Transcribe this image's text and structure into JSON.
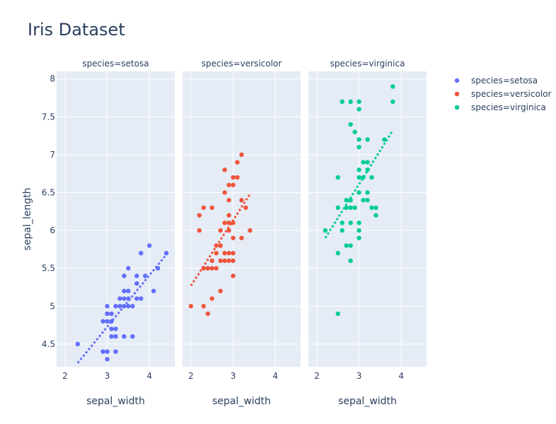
{
  "title": "Iris Dataset",
  "colors": {
    "plot_bg": "#e5ecf6",
    "grid": "#ffffff",
    "text": "#2a3f5f"
  },
  "chart_data": {
    "type": "scatter",
    "title": "Iris Dataset",
    "xlabel": "sepal_width",
    "ylabel": "sepal_length",
    "xlim": [
      1.8,
      4.6
    ],
    "ylim": [
      4.2,
      8.1
    ],
    "xticks": [
      "2",
      "3",
      "4"
    ],
    "yticks": [
      "4.5",
      "5",
      "5.5",
      "6",
      "6.5",
      "7",
      "7.5",
      "8"
    ],
    "grid": true,
    "legend_position": "top-right",
    "trendline_style": "dotted",
    "facets": [
      {
        "label": "species=setosa",
        "series": "species=setosa",
        "color": "#636efa",
        "trend": [
          [
            2.3,
            4.25
          ],
          [
            4.4,
            5.68
          ]
        ],
        "points": [
          [
            2.3,
            4.5
          ],
          [
            2.9,
            4.4
          ],
          [
            3.0,
            4.4
          ],
          [
            3.2,
            4.4
          ],
          [
            3.0,
            4.3
          ],
          [
            2.9,
            4.8
          ],
          [
            3.0,
            4.8
          ],
          [
            3.1,
            4.8
          ],
          [
            3.0,
            4.9
          ],
          [
            3.1,
            4.9
          ],
          [
            3.0,
            5.0
          ],
          [
            3.2,
            5.0
          ],
          [
            3.3,
            5.0
          ],
          [
            3.4,
            5.0
          ],
          [
            3.5,
            5.0
          ],
          [
            3.6,
            5.0
          ],
          [
            3.1,
            4.7
          ],
          [
            3.2,
            4.7
          ],
          [
            3.1,
            4.6
          ],
          [
            3.2,
            4.6
          ],
          [
            3.4,
            4.6
          ],
          [
            3.6,
            4.6
          ],
          [
            3.3,
            5.1
          ],
          [
            3.4,
            5.1
          ],
          [
            3.5,
            5.1
          ],
          [
            3.7,
            5.1
          ],
          [
            3.8,
            5.1
          ],
          [
            3.4,
            5.2
          ],
          [
            3.5,
            5.2
          ],
          [
            4.1,
            5.2
          ],
          [
            3.7,
            5.3
          ],
          [
            3.4,
            5.4
          ],
          [
            3.7,
            5.4
          ],
          [
            3.9,
            5.4
          ],
          [
            3.5,
            5.5
          ],
          [
            4.2,
            5.5
          ],
          [
            3.8,
            5.7
          ],
          [
            4.4,
            5.7
          ],
          [
            4.0,
            5.8
          ],
          [
            3.0,
            4.9
          ]
        ]
      },
      {
        "label": "species=versicolor",
        "series": "species=versicolor",
        "color": "#ef553b",
        "trend": [
          [
            2.0,
            5.27
          ],
          [
            3.4,
            6.48
          ]
        ],
        "points": [
          [
            2.0,
            5.0
          ],
          [
            2.3,
            5.0
          ],
          [
            2.4,
            4.9
          ],
          [
            2.5,
            5.1
          ],
          [
            2.7,
            5.2
          ],
          [
            2.3,
            5.5
          ],
          [
            2.4,
            5.5
          ],
          [
            2.5,
            5.5
          ],
          [
            2.6,
            5.5
          ],
          [
            2.5,
            5.6
          ],
          [
            2.7,
            5.6
          ],
          [
            2.9,
            5.6
          ],
          [
            3.0,
            5.6
          ],
          [
            2.6,
            5.7
          ],
          [
            2.8,
            5.7
          ],
          [
            2.9,
            5.7
          ],
          [
            3.0,
            5.7
          ],
          [
            2.6,
            5.8
          ],
          [
            2.7,
            5.8
          ],
          [
            2.7,
            5.8
          ],
          [
            3.0,
            5.9
          ],
          [
            3.2,
            5.9
          ],
          [
            2.2,
            6.0
          ],
          [
            2.7,
            6.0
          ],
          [
            2.9,
            6.0
          ],
          [
            3.4,
            6.0
          ],
          [
            2.2,
            6.2
          ],
          [
            2.9,
            6.2
          ],
          [
            2.3,
            6.3
          ],
          [
            2.5,
            6.3
          ],
          [
            3.3,
            6.3
          ],
          [
            2.9,
            6.4
          ],
          [
            3.2,
            6.4
          ],
          [
            2.8,
            6.5
          ],
          [
            3.0,
            6.6
          ],
          [
            2.9,
            6.6
          ],
          [
            3.0,
            6.7
          ],
          [
            3.1,
            6.7
          ],
          [
            2.8,
            6.8
          ],
          [
            3.1,
            6.9
          ],
          [
            3.2,
            7.0
          ],
          [
            2.8,
            6.1
          ],
          [
            2.9,
            6.1
          ],
          [
            3.0,
            6.1
          ],
          [
            3.0,
            5.4
          ],
          [
            2.4,
            5.5
          ],
          [
            2.8,
            5.6
          ]
        ]
      },
      {
        "label": "species=virginica",
        "series": "species=virginica",
        "color": "#00cc96",
        "trend": [
          [
            2.2,
            5.9
          ],
          [
            3.8,
            7.32
          ]
        ],
        "points": [
          [
            2.5,
            4.9
          ],
          [
            2.5,
            5.7
          ],
          [
            2.7,
            5.8
          ],
          [
            2.8,
            5.8
          ],
          [
            2.8,
            5.6
          ],
          [
            3.0,
            5.9
          ],
          [
            3.0,
            6.0
          ],
          [
            2.2,
            6.0
          ],
          [
            3.0,
            6.1
          ],
          [
            2.6,
            6.1
          ],
          [
            2.8,
            6.1
          ],
          [
            2.6,
            6.0
          ],
          [
            2.5,
            6.3
          ],
          [
            2.7,
            6.3
          ],
          [
            2.8,
            6.3
          ],
          [
            2.9,
            6.3
          ],
          [
            3.3,
            6.3
          ],
          [
            3.4,
            6.3
          ],
          [
            3.4,
            6.2
          ],
          [
            2.7,
            6.4
          ],
          [
            2.8,
            6.4
          ],
          [
            3.1,
            6.4
          ],
          [
            3.2,
            6.4
          ],
          [
            3.0,
            6.5
          ],
          [
            3.2,
            6.5
          ],
          [
            3.0,
            6.7
          ],
          [
            3.1,
            6.7
          ],
          [
            3.3,
            6.7
          ],
          [
            2.5,
            6.7
          ],
          [
            3.0,
            6.8
          ],
          [
            3.2,
            6.8
          ],
          [
            3.1,
            6.9
          ],
          [
            3.2,
            6.9
          ],
          [
            3.0,
            7.1
          ],
          [
            3.0,
            7.2
          ],
          [
            3.2,
            7.2
          ],
          [
            3.6,
            7.2
          ],
          [
            2.9,
            7.3
          ],
          [
            2.8,
            7.4
          ],
          [
            3.0,
            7.6
          ],
          [
            2.6,
            7.7
          ],
          [
            2.8,
            7.7
          ],
          [
            3.0,
            7.7
          ],
          [
            3.8,
            7.7
          ],
          [
            3.8,
            7.9
          ]
        ]
      }
    ]
  }
}
